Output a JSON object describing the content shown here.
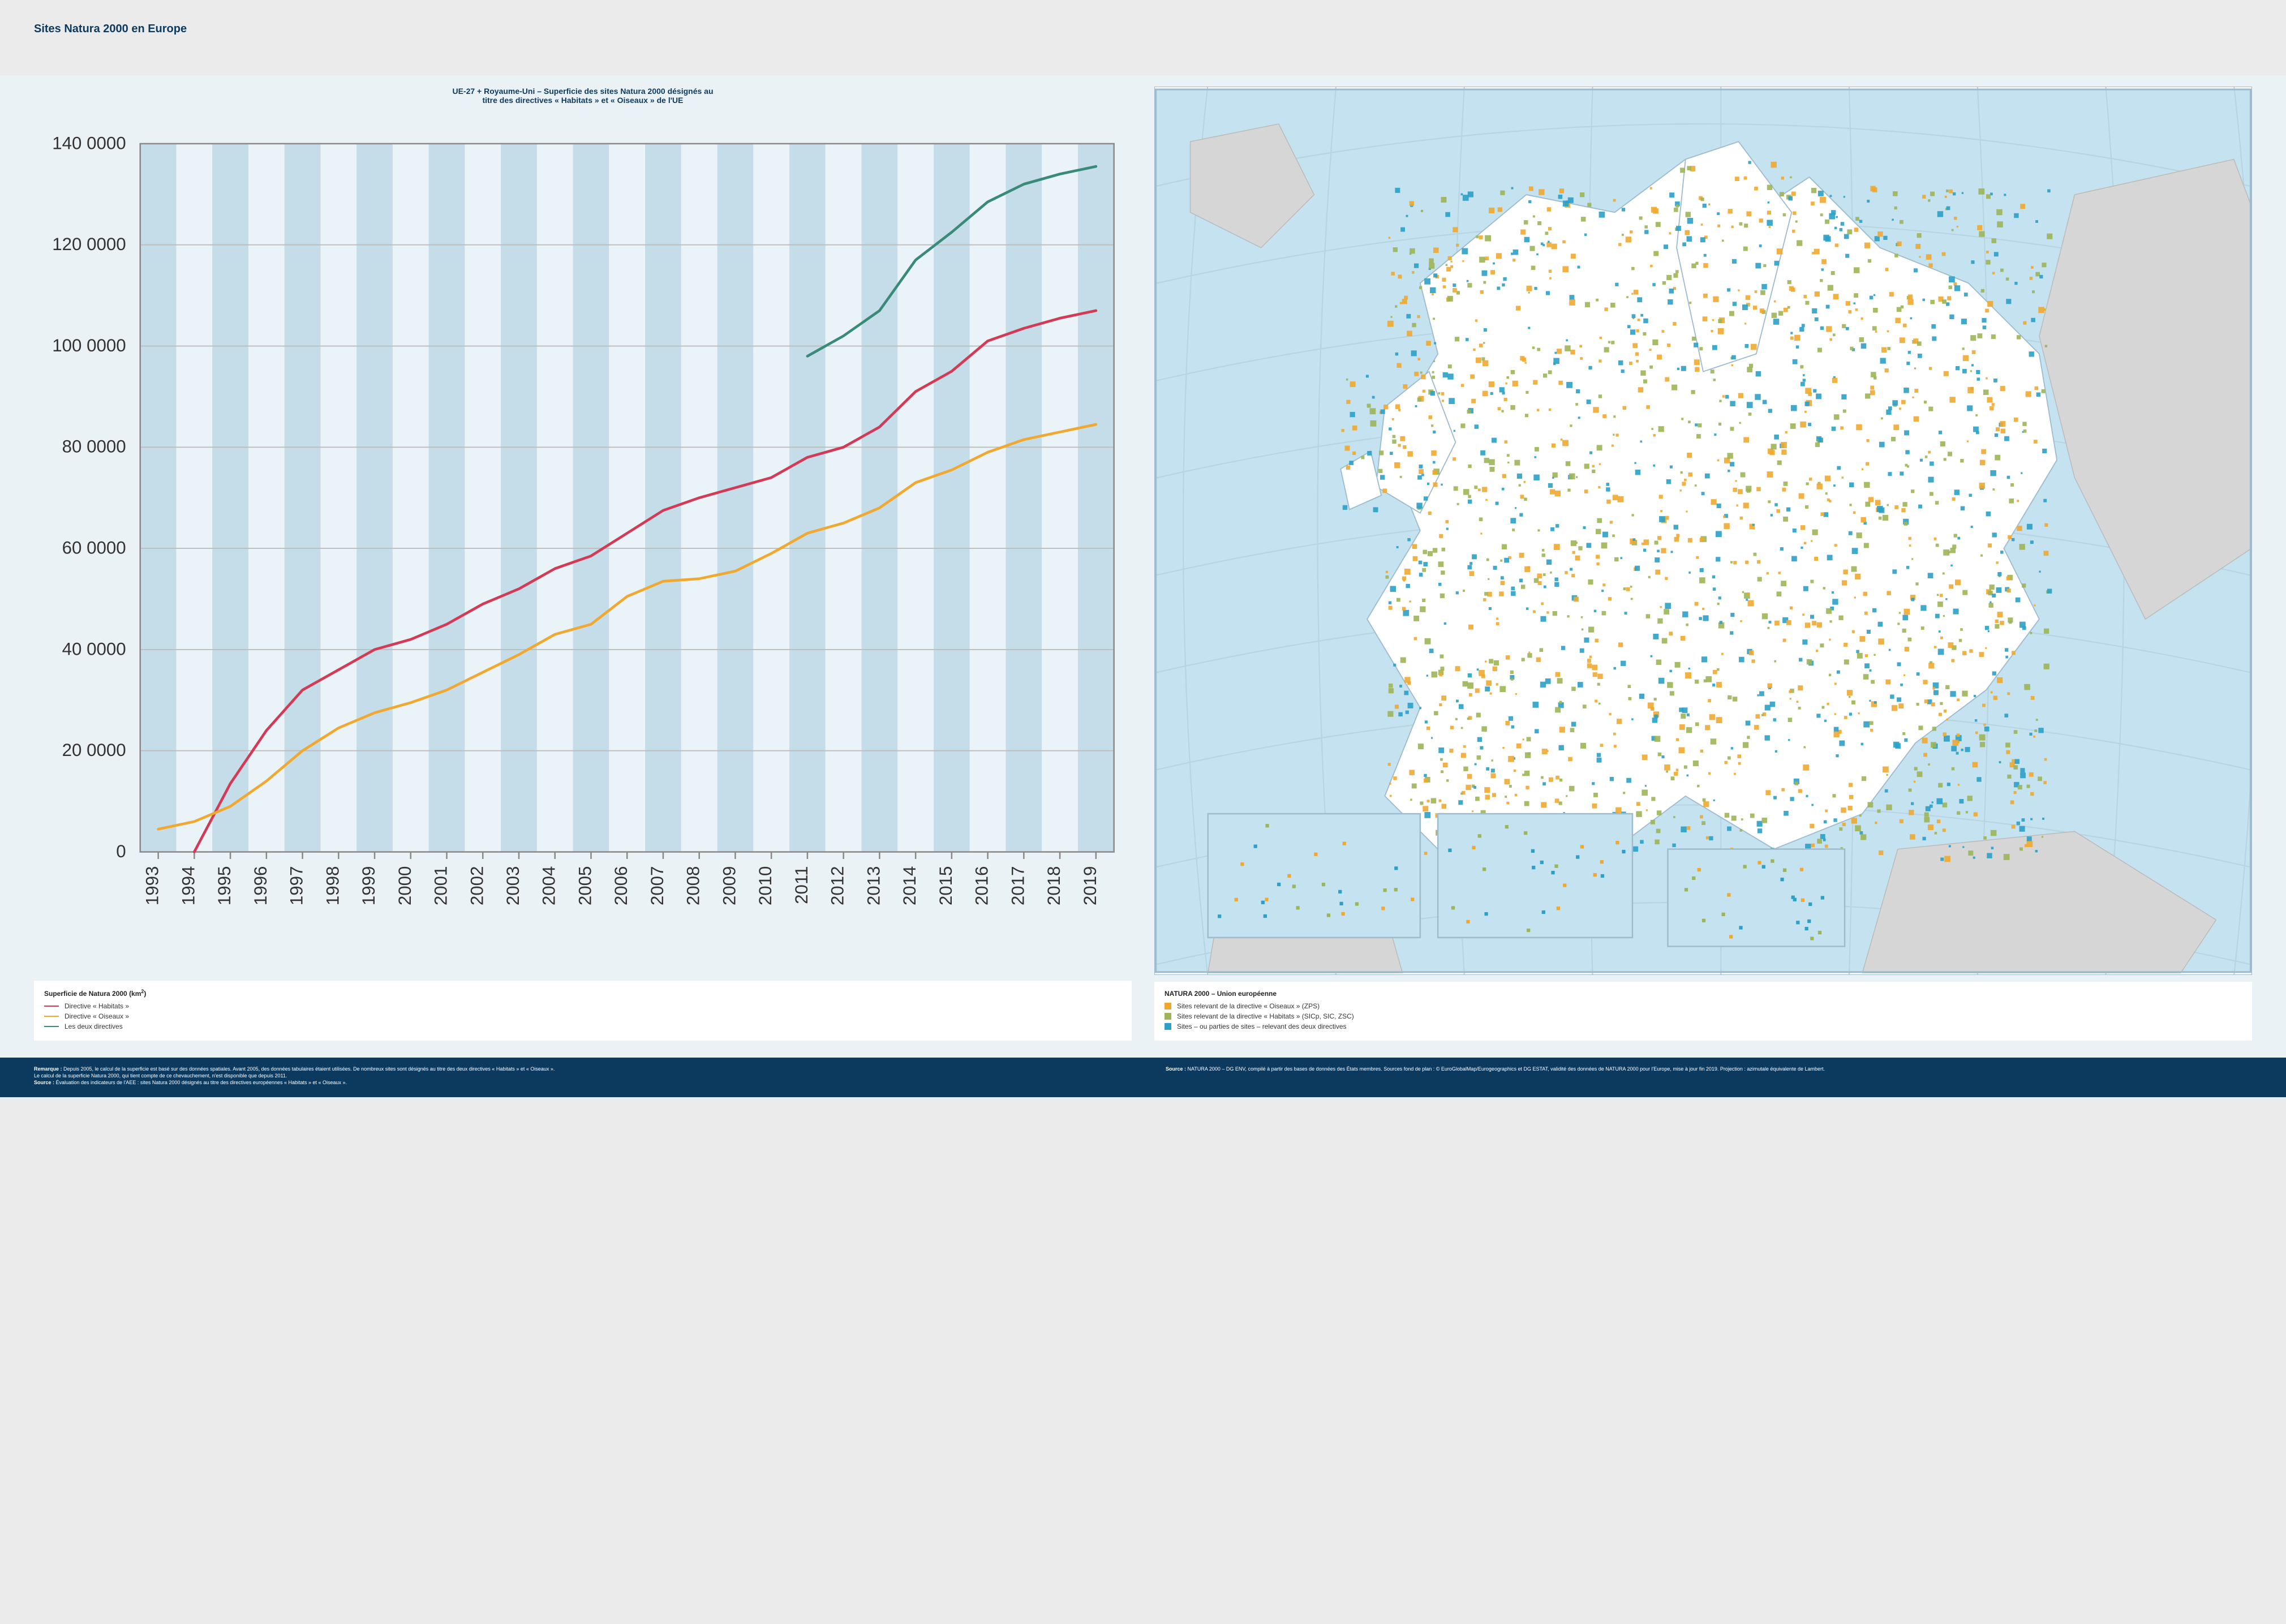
{
  "header": {
    "title": "Sites Natura 2000 en Europe"
  },
  "chart": {
    "type": "line",
    "title_line1": "UE-27 + Royaume-Uni – Superficie des sites Natura 2000 désignés au",
    "title_line2": "titre des directives « Habitats » et « Oiseaux » de l'UE",
    "x_categories": [
      "1993",
      "1994",
      "1995",
      "1996",
      "1997",
      "1998",
      "1999",
      "2000",
      "2001",
      "2002",
      "2003",
      "2004",
      "2005",
      "2006",
      "2007",
      "2008",
      "2009",
      "2010",
      "2011",
      "2012",
      "2013",
      "2014",
      "2015",
      "2016",
      "2017",
      "2018",
      "2019"
    ],
    "y_label_ticks": [
      "0",
      "20 0000",
      "40 0000",
      "60 0000",
      "80 0000",
      "100 0000",
      "120 0000",
      "140 0000"
    ],
    "y_tick_values": [
      0,
      200000,
      400000,
      600000,
      800000,
      1000000,
      1200000,
      1400000
    ],
    "ylim": [
      0,
      1400000
    ],
    "series": [
      {
        "name": "habitats",
        "label": "Directive « Habitats »",
        "color": "#d23a56",
        "values": [
          null,
          0,
          135000,
          240000,
          320000,
          360000,
          400000,
          420000,
          450000,
          490000,
          520000,
          560000,
          585000,
          630000,
          675000,
          700000,
          720000,
          740000,
          780000,
          800000,
          840000,
          910000,
          950000,
          1010000,
          1035000,
          1055000,
          1070000
        ]
      },
      {
        "name": "oiseaux",
        "label": "Directive « Oiseaux »",
        "color": "#f0a830",
        "values": [
          45000,
          60000,
          90000,
          140000,
          200000,
          245000,
          275000,
          295000,
          320000,
          355000,
          390000,
          430000,
          450000,
          505000,
          535000,
          540000,
          555000,
          590000,
          630000,
          650000,
          680000,
          730000,
          755000,
          790000,
          815000,
          830000,
          845000
        ]
      },
      {
        "name": "both",
        "label": "Les deux directives",
        "color": "#3a8a7a",
        "values": [
          null,
          null,
          null,
          null,
          null,
          null,
          null,
          null,
          null,
          null,
          null,
          null,
          null,
          null,
          null,
          null,
          null,
          null,
          980000,
          1020000,
          1070000,
          1170000,
          1225000,
          1285000,
          1320000,
          1340000,
          1355000
        ]
      }
    ],
    "background_stripe_color": "#c4dde8",
    "background_base_color": "#eaf3f7",
    "grid_color": "#bdbdbd",
    "axis_color": "#888888",
    "tick_fontsize": 10,
    "line_width": 1.5
  },
  "chart_legend": {
    "title": "Superficie de Natura 2000 (km",
    "title_sup": "2",
    "title_close": ")",
    "items": [
      {
        "color": "#d23a56",
        "label": "Directive « Habitats »"
      },
      {
        "color": "#f0a830",
        "label": "Directive « Oiseaux »"
      },
      {
        "color": "#3a8a7a",
        "label": "Les deux directives"
      }
    ]
  },
  "map": {
    "type": "map",
    "background_sea": "#c4e2ef",
    "land_eu_fill": "#ffffff",
    "land_noneu_fill": "#d6d6d6",
    "border_color": "#9fbccf",
    "graticule_color": "#b8d4e2",
    "site_colors": {
      "oiseaux": "#f0a830",
      "habitats": "#9db556",
      "both": "#2ca0c7"
    }
  },
  "map_legend": {
    "title": "NATURA 2000 – Union européenne",
    "items": [
      {
        "color": "#f0a830",
        "label": "Sites relevant de la directive « Oiseaux » (ZPS)"
      },
      {
        "color": "#9db556",
        "label": "Sites relevant de la directive « Habitats » (SICp, SIC, ZSC)"
      },
      {
        "color": "#2ca0c7",
        "label": "Sites – ou parties de sites – relevant des deux directives"
      }
    ]
  },
  "footer": {
    "left_html": "<b>Remarque :</b> Depuis 2005, le calcul de la superficie est basé sur des données spatiales. Avant 2005, des données tabulaires étaient utilisées. De nombreux sites sont désignés au titre des deux directives « Habitats » et « Oiseaux ».<br>Le calcul de la superficie Natura 2000, qui tient compte de ce chevauchement, n'est disponible que depuis 2011.<br><b>Source :</b> Évaluation des indicateurs de l'AEE : sites Natura 2000 désignés au titre des directives européennes « Habitats » et « Oiseaux ».",
    "right_html": "<b>Source :</b> NATURA 2000 – DG ENV, compilé à partir des bases de données des États membres. Sources fond de plan : © EuroGlobalMap/Eurogeographics et DG ESTAT, validité des données de NATURA 2000 pour l'Europe, mise à jour fin 2019. Projection : azimutale équivalente de Lambert."
  }
}
